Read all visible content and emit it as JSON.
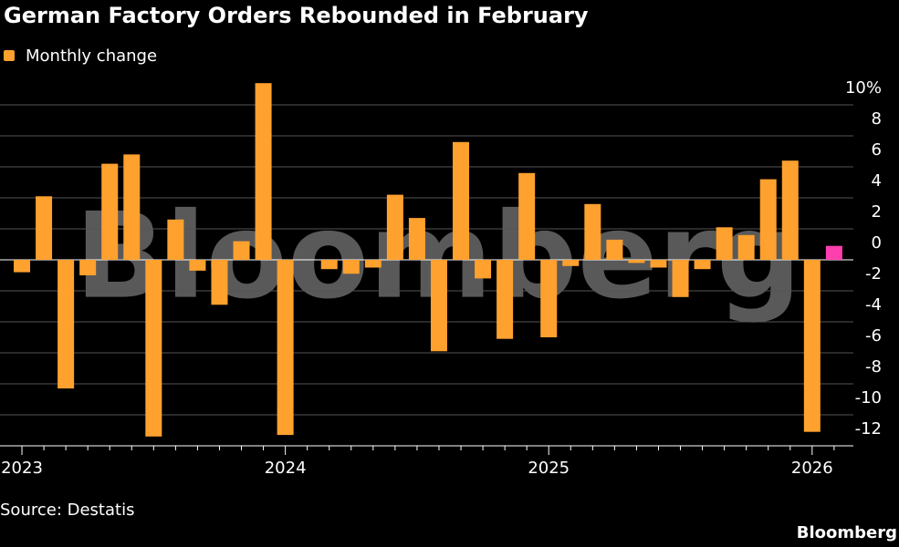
{
  "chart_data": {
    "type": "bar",
    "title": "German Factory Orders Rebounded in February",
    "legend": "Monthly change",
    "source": "Source: Destatis",
    "brand": "Bloomberg",
    "watermark": "Bloomberg",
    "categories": [
      "2023",
      null,
      null,
      null,
      null,
      null,
      null,
      null,
      null,
      null,
      null,
      null,
      "2024",
      null,
      null,
      null,
      null,
      null,
      null,
      null,
      null,
      null,
      null,
      null,
      "2025",
      null,
      null,
      null,
      null,
      null,
      null,
      null,
      null,
      null,
      null,
      null,
      "2026",
      null
    ],
    "values": [
      -0.8,
      4.1,
      -8.3,
      -1.0,
      6.2,
      6.8,
      -11.4,
      2.6,
      -0.7,
      -2.9,
      1.2,
      11.4,
      -11.3,
      0,
      -0.6,
      -0.9,
      -0.5,
      4.2,
      2.7,
      -5.9,
      7.6,
      -1.2,
      -5.1,
      5.6,
      -5.0,
      -0.4,
      3.6,
      1.3,
      -0.2,
      -0.5,
      -2.4,
      -0.6,
      2.1,
      1.6,
      5.2,
      6.4,
      -11.1,
      0.9
    ],
    "color": "#ffa12e",
    "colors": [
      "#ffa12e",
      "#ffa12e",
      "#ffa12e",
      "#ffa12e",
      "#ffa12e",
      "#ffa12e",
      "#ffa12e",
      "#ffa12e",
      "#ffa12e",
      "#ffa12e",
      "#ffa12e",
      "#ffa12e",
      "#ffa12e",
      "#ffa12e",
      "#ffa12e",
      "#ffa12e",
      "#ffa12e",
      "#ffa12e",
      "#ffa12e",
      "#ffa12e",
      "#ffa12e",
      "#ffa12e",
      "#ffa12e",
      "#ffa12e",
      "#ffa12e",
      "#ffa12e",
      "#ffa12e",
      "#ffa12e",
      "#ffa12e",
      "#ffa12e",
      "#ffa12e",
      "#ffa12e",
      "#ffa12e",
      "#ffa12e",
      "#ffa12e",
      "#ffa12e",
      "#ffa12e",
      "#ff3fae"
    ],
    "ylim": [
      -12,
      11.5
    ],
    "yticks": [
      {
        "value": 10,
        "label": "10%"
      },
      8,
      6,
      4,
      2,
      0,
      -2,
      -4,
      -6,
      -8,
      -10,
      -12
    ],
    "grid": true
  }
}
